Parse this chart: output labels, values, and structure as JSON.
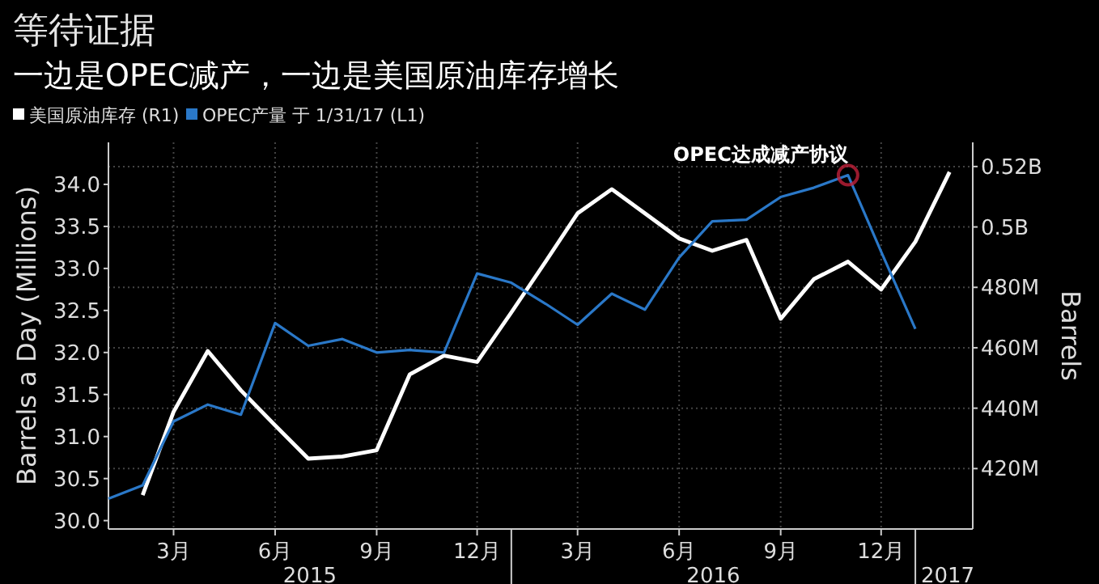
{
  "chart_data": {
    "type": "line",
    "title": "等待证据",
    "subtitle": "一边是OPEC减产，一边是美国原油库存增长",
    "ylabel": "Barrels a Day (Millions)",
    "y2label": "Barrels",
    "x": [
      "2015-01",
      "2015-02",
      "2015-03",
      "2015-04",
      "2015-05",
      "2015-06",
      "2015-07",
      "2015-08",
      "2015-09",
      "2015-10",
      "2015-11",
      "2015-12",
      "2016-01",
      "2016-02",
      "2016-03",
      "2016-04",
      "2016-05",
      "2016-06",
      "2016-07",
      "2016-08",
      "2016-09",
      "2016-10",
      "2016-11",
      "2016-12",
      "2017-01",
      "2017-02"
    ],
    "series": [
      {
        "name": "美国原油库存 (R1)",
        "color": "#ffffff",
        "axis": "y2",
        "values": [
          null,
          411200000,
          438800000,
          458900000,
          445900000,
          434300000,
          423300000,
          424000000,
          426100000,
          451200000,
          457400000,
          455300000,
          471700000,
          488500000,
          504500000,
          512500000,
          504500000,
          496200000,
          492100000,
          495700000,
          469600000,
          482700000,
          488500000,
          479300000,
          495100000,
          518200000
        ]
      },
      {
        "name": "OPEC产量 于 1/31/17 (L1)",
        "color": "#2a78c8",
        "values": [
          30.26,
          30.42,
          31.18,
          31.38,
          31.26,
          32.35,
          32.08,
          32.16,
          32.0,
          32.03,
          32.0,
          32.94,
          32.83,
          32.58,
          32.33,
          32.7,
          32.51,
          33.13,
          33.56,
          33.58,
          33.85,
          33.96,
          34.11,
          33.2,
          32.28,
          null
        ]
      }
    ],
    "xlim": [
      "2015-01-01",
      "2017-02-22"
    ],
    "xticks": [
      {
        "value": "2015-03",
        "label": "3月"
      },
      {
        "value": "2015-06",
        "label": "6月"
      },
      {
        "value": "2015-09",
        "label": "9月"
      },
      {
        "value": "2015-12",
        "label": "12月"
      },
      {
        "value": "2016-03",
        "label": "3月"
      },
      {
        "value": "2016-06",
        "label": "6月"
      },
      {
        "value": "2016-09",
        "label": "9月"
      },
      {
        "value": "2016-12",
        "label": "12月"
      }
    ],
    "ylim": [
      29.9,
      34.5
    ],
    "yticks": [
      {
        "value": 30,
        "label": "30.0"
      },
      30.5,
      {
        "value": 31,
        "label": "31.0"
      },
      31.5,
      {
        "value": 32,
        "label": "32.0"
      },
      32.5,
      {
        "value": 33,
        "label": "33.0"
      },
      33.5,
      {
        "value": 34,
        "label": "34.0"
      }
    ],
    "y2lim": [
      400000000,
      528000000
    ],
    "y2ticks": [
      {
        "value": 420000000,
        "label": "420M"
      },
      {
        "value": 440000000,
        "label": "440M"
      },
      {
        "value": 460000000,
        "label": "460M"
      },
      {
        "value": 480000000,
        "label": "480M"
      },
      {
        "value": 500000000,
        "label": "0.5B"
      },
      {
        "value": 520000000,
        "label": "0.52B"
      }
    ],
    "annotations": [
      {
        "text": "OPEC达成减产协议",
        "x": "2016-11",
        "y": 34.11
      },
      "2015",
      "2016",
      "2017"
    ],
    "grid": true,
    "legend": "top left",
    "marker": "none",
    "line_style": "solid"
  }
}
